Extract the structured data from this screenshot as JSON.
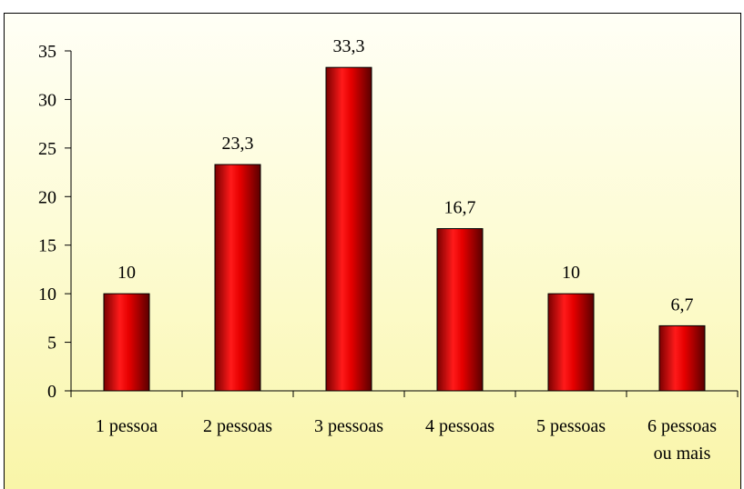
{
  "chart_data": {
    "type": "bar",
    "title": "",
    "categories": [
      [
        "1 pessoa"
      ],
      [
        "2 pessoas"
      ],
      [
        "3 pessoas"
      ],
      [
        "4 pessoas"
      ],
      [
        "5 pessoas"
      ],
      [
        "6 pessoas",
        "ou mais"
      ]
    ],
    "values": [
      10,
      23.3,
      33.3,
      16.7,
      10,
      6.7
    ],
    "data_labels": [
      "10",
      "23,3",
      "33,3",
      "16,7",
      "10",
      "6,7"
    ],
    "y_ticks": [
      "0",
      "5",
      "10",
      "15",
      "20",
      "25",
      "30",
      "35"
    ],
    "ylim": [
      0,
      35
    ],
    "xlabel": "",
    "ylabel": "",
    "grid": false,
    "legend": "none",
    "bar_color": "#e00000",
    "bar_dark": "#6a0000",
    "background_top": "#fffff6",
    "background_bottom": "#f9f5a8"
  }
}
